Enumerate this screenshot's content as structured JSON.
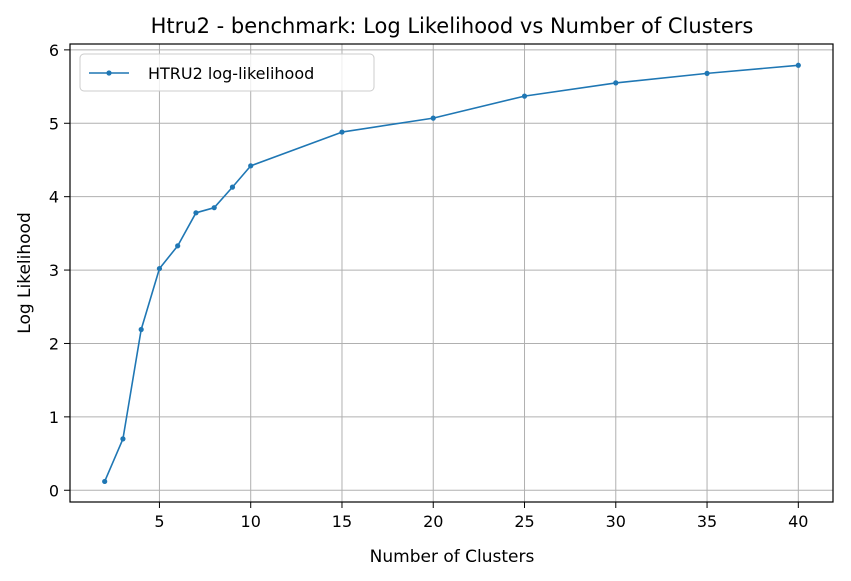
{
  "chart_data": {
    "type": "line",
    "title": "Htru2 - benchmark: Log Likelihood vs Number of Clusters",
    "xlabel": "Number of Clusters",
    "ylabel": "Log Likelihood",
    "xlim": [
      0.1,
      41.9
    ],
    "ylim": [
      -0.16,
      6.08
    ],
    "xticks": [
      5,
      10,
      15,
      20,
      25,
      30,
      35,
      40
    ],
    "yticks": [
      0,
      1,
      2,
      3,
      4,
      5,
      6
    ],
    "grid": true,
    "legend_position": "top-left",
    "series": [
      {
        "name": "HTRU2 log-likelihood",
        "color": "#1f77b4",
        "x": [
          2,
          3,
          4,
          5,
          6,
          7,
          8,
          9,
          10,
          15,
          20,
          25,
          30,
          35,
          40
        ],
        "y": [
          0.12,
          0.7,
          2.19,
          3.02,
          3.33,
          3.78,
          3.85,
          4.13,
          4.42,
          4.88,
          5.07,
          5.37,
          5.55,
          5.68,
          5.79
        ]
      }
    ]
  }
}
